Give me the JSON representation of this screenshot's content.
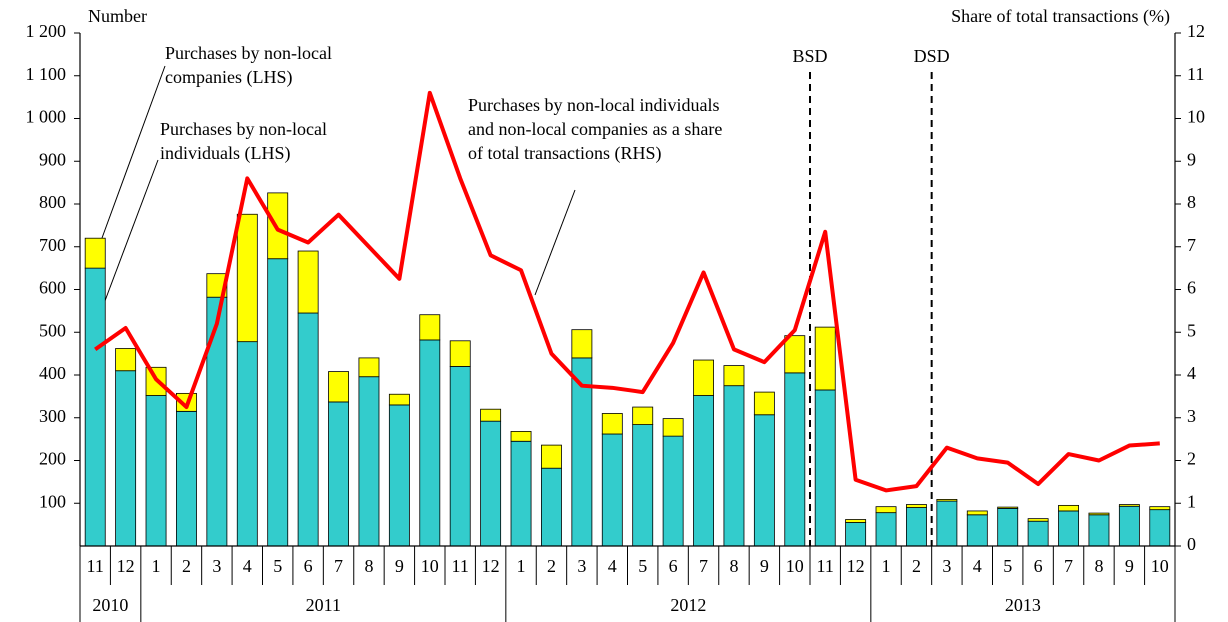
{
  "chart_data": {
    "type": "bar-line",
    "y_label": "Number",
    "y2_label": "Share of total transactions (%)",
    "categories": [
      "11",
      "12",
      "1",
      "2",
      "3",
      "4",
      "5",
      "6",
      "7",
      "8",
      "9",
      "10",
      "11",
      "12",
      "1",
      "2",
      "3",
      "4",
      "5",
      "6",
      "7",
      "8",
      "9",
      "10",
      "11",
      "12",
      "1",
      "2",
      "3",
      "4",
      "5",
      "6",
      "7",
      "8",
      "9",
      "10"
    ],
    "category_groups": [
      {
        "label": "2010",
        "span": 2
      },
      {
        "label": "2011",
        "span": 12
      },
      {
        "label": "2012",
        "span": 12
      },
      {
        "label": "2013",
        "span": 10
      }
    ],
    "series": [
      {
        "name": [
          "Purchases by non-local",
          "individuals  (LHS)"
        ],
        "color": "#33cccc",
        "kind": "bar",
        "values": [
          650,
          410,
          352,
          315,
          582,
          478,
          672,
          545,
          337,
          396,
          330,
          482,
          420,
          292,
          245,
          182,
          440,
          262,
          284,
          257,
          352,
          375,
          307,
          405,
          365,
          55,
          78,
          90,
          105,
          73,
          88,
          58,
          82,
          73,
          93,
          85
        ]
      },
      {
        "name": [
          "Purchases by non-local",
          "companies (LHS)"
        ],
        "color": "#ffff00",
        "kind": "bar",
        "values": [
          70,
          52,
          66,
          42,
          55,
          298,
          154,
          145,
          71,
          44,
          25,
          59,
          60,
          28,
          23,
          54,
          66,
          48,
          41,
          41,
          83,
          47,
          53,
          87,
          147,
          7,
          14,
          7,
          4,
          9,
          3,
          6,
          13,
          4,
          4,
          7
        ]
      },
      {
        "name": [
          "Purchases by non-local individuals",
          "and non-local companies as a share",
          "of total transactions (RHS)"
        ],
        "color": "#ff0000",
        "kind": "line",
        "axis": "y2",
        "values": [
          4.6,
          5.1,
          3.9,
          3.25,
          5.2,
          8.6,
          7.4,
          7.1,
          7.75,
          7.0,
          6.25,
          10.6,
          8.6,
          6.8,
          6.45,
          4.5,
          3.75,
          3.7,
          3.6,
          4.75,
          6.4,
          4.6,
          4.3,
          5.05,
          7.35,
          1.55,
          1.3,
          1.4,
          2.3,
          2.05,
          1.95,
          1.45,
          2.15,
          2.0,
          2.35,
          2.4
        ]
      }
    ],
    "events": [
      {
        "label": "BSD",
        "before_category": 24
      },
      {
        "label": "DSD",
        "before_category": 28
      }
    ],
    "ylim": [
      0,
      1200
    ],
    "yticks": [
      100,
      200,
      300,
      400,
      500,
      600,
      700,
      800,
      900,
      {
        "value": 1000,
        "label": "1 000"
      },
      {
        "value": 1100,
        "label": "1 100"
      },
      {
        "value": 1200,
        "label": "1 200"
      }
    ],
    "y2lim": [
      0,
      12
    ],
    "y2ticks": [
      0,
      1,
      2,
      3,
      4,
      5,
      6,
      7,
      8,
      9,
      10,
      11,
      12
    ]
  }
}
